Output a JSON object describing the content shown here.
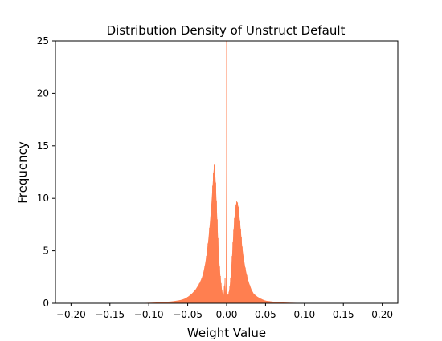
{
  "chart_data": {
    "type": "histogram",
    "title": "Distribution Density of Unstruct Default",
    "xlabel": "Weight Value",
    "ylabel": "Frequency",
    "xlim": [
      -0.22,
      0.22
    ],
    "ylim": [
      0,
      25
    ],
    "xticks": [
      -0.2,
      -0.15,
      -0.1,
      -0.05,
      0.0,
      0.05,
      0.1,
      0.15,
      0.2
    ],
    "xtick_labels": [
      "−0.20",
      "−0.15",
      "−0.10",
      "−0.05",
      "0.00",
      "0.05",
      "0.10",
      "0.15",
      "0.20"
    ],
    "yticks": [
      0,
      5,
      10,
      15,
      20,
      25
    ],
    "ytick_labels": [
      "0",
      "5",
      "10",
      "15",
      "20",
      "25"
    ],
    "grid": false,
    "bar_color": "#ff7f50",
    "bin_width": 0.001,
    "x": [
      -0.15,
      -0.14,
      -0.13,
      -0.12,
      -0.11,
      -0.1,
      -0.09,
      -0.08,
      -0.07,
      -0.06,
      -0.055,
      -0.05,
      -0.045,
      -0.04,
      -0.035,
      -0.032,
      -0.03,
      -0.028,
      -0.026,
      -0.024,
      -0.022,
      -0.02,
      -0.018,
      -0.017,
      -0.016,
      -0.015,
      -0.014,
      -0.013,
      -0.012,
      -0.011,
      -0.01,
      -0.009,
      -0.008,
      -0.007,
      -0.006,
      -0.005,
      -0.004,
      -0.003,
      -0.002,
      -0.001,
      0.0,
      0.001,
      0.002,
      0.003,
      0.004,
      0.005,
      0.006,
      0.007,
      0.008,
      0.009,
      0.01,
      0.011,
      0.012,
      0.013,
      0.014,
      0.015,
      0.016,
      0.017,
      0.018,
      0.019,
      0.02,
      0.022,
      0.024,
      0.026,
      0.028,
      0.03,
      0.032,
      0.035,
      0.04,
      0.045,
      0.05,
      0.055,
      0.06,
      0.065,
      0.07,
      0.08,
      0.09,
      0.1,
      0.11,
      0.12
    ],
    "values": [
      0.01,
      0.01,
      0.01,
      0.02,
      0.03,
      0.05,
      0.08,
      0.12,
      0.18,
      0.3,
      0.4,
      0.6,
      0.9,
      1.3,
      1.9,
      2.4,
      2.9,
      3.6,
      4.5,
      5.7,
      7.2,
      9.0,
      11.2,
      12.4,
      13.2,
      12.8,
      11.5,
      9.8,
      8.0,
      6.2,
      4.7,
      3.5,
      2.6,
      1.9,
      1.3,
      0.9,
      0.8,
      1.6,
      2.4,
      1.0,
      25.0,
      0.9,
      0.8,
      1.1,
      1.6,
      2.4,
      3.4,
      4.5,
      5.8,
      7.0,
      8.1,
      8.9,
      9.4,
      9.7,
      9.6,
      9.2,
      8.6,
      7.9,
      7.1,
      6.3,
      5.4,
      4.3,
      3.4,
      2.7,
      2.1,
      1.7,
      1.3,
      0.9,
      0.6,
      0.4,
      0.25,
      0.2,
      0.15,
      0.12,
      0.09,
      0.06,
      0.04,
      0.03,
      0.02,
      0.01
    ]
  }
}
